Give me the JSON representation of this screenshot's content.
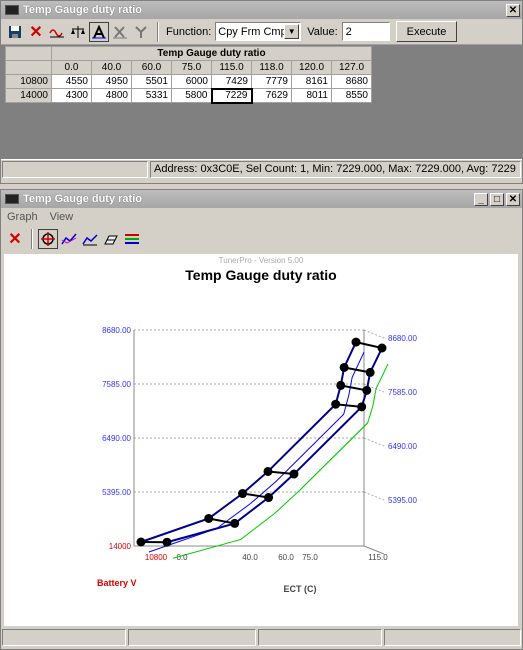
{
  "table_window": {
    "title": "Temp Gauge duty ratio",
    "title_buttons": {
      "close": "✕"
    },
    "toolbar": {
      "function_label": "Function:",
      "function_value": "Cpy Frm Cmpr",
      "value_label": "Value:",
      "value_value": "2",
      "execute_label": "Execute"
    },
    "grid": {
      "title": "Temp Gauge duty ratio",
      "columns": [
        "0.0",
        "40.0",
        "60.0",
        "75.0",
        "115.0",
        "118.0",
        "120.0",
        "127.0"
      ],
      "rows": [
        {
          "label": "10800",
          "values": [
            "4550",
            "4950",
            "5501",
            "6000",
            "7429",
            "7779",
            "8161",
            "8680"
          ]
        },
        {
          "label": "14000",
          "values": [
            "4300",
            "4800",
            "5331",
            "5800",
            "7229",
            "7629",
            "8011",
            "8550"
          ]
        }
      ]
    },
    "status": "Address: 0x3C0E, Sel Count: 1, Min: 7229.000, Max: 7229.000, Avg: 7229"
  },
  "graph_window": {
    "title": "Temp Gauge duty ratio",
    "title_buttons": {
      "minimize": "_",
      "maximize": "□",
      "close": "✕"
    },
    "menu": [
      "Graph",
      "View"
    ],
    "plot": {
      "watermark": "TunerPro - Version 5.00",
      "chart_title": "Temp Gauge duty ratio",
      "x_axis_label": "ECT (C)",
      "depth_axis_label": "Battery V",
      "z_ticks_left": [
        "8680.00",
        "7585.00",
        "6490.00",
        "5395.00",
        "14000"
      ],
      "z_ticks_right": [
        "8680.00",
        "7585.00",
        "6490.00",
        "5395.00"
      ],
      "x_ticks": [
        "0.0",
        "40.0",
        "60.0",
        "75.0",
        "115.0"
      ],
      "depth_tick": "10800"
    }
  },
  "chart_data": {
    "type": "surface",
    "title": "Temp Gauge duty ratio",
    "xlabel": "ECT (C)",
    "ylabel": "Battery V",
    "x": [
      0.0,
      40.0,
      60.0,
      75.0,
      115.0,
      118.0,
      120.0,
      127.0
    ],
    "series": [
      {
        "name": "10800",
        "values": [
          4550,
          4950,
          5501,
          6000,
          7429,
          7779,
          8161,
          8680
        ]
      },
      {
        "name": "14000",
        "values": [
          4300,
          4800,
          5331,
          5800,
          7229,
          7629,
          8011,
          8550
        ]
      }
    ],
    "zlim": [
      4300,
      8680
    ],
    "colors": {
      "main": "#00008b",
      "shadow": "#0000ff",
      "floor": "#00cc00",
      "front": "#000000"
    }
  }
}
